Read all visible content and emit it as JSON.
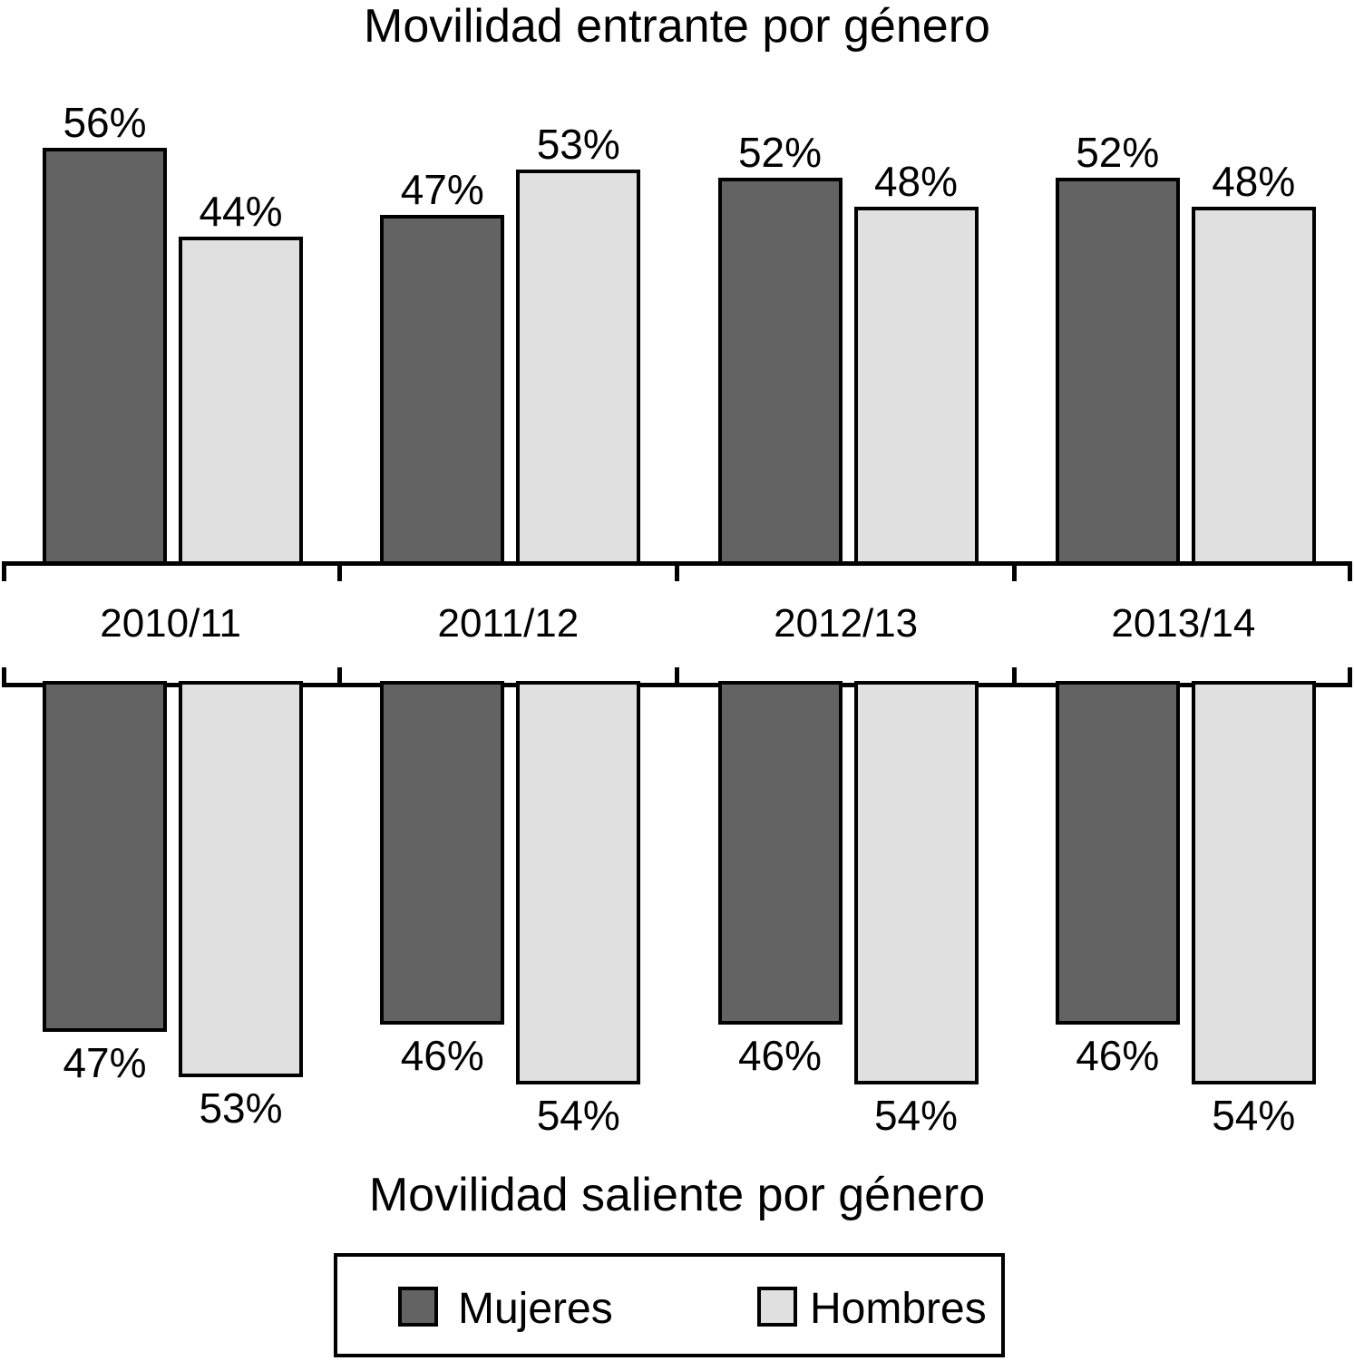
{
  "chart_data": [
    {
      "type": "bar",
      "title": "Movilidad entrante por género",
      "direction": "up",
      "unit": "%",
      "categories": [
        "2010/11",
        "2011/12",
        "2012/13",
        "2013/14"
      ],
      "series": [
        {
          "name": "Mujeres",
          "color": "#636363",
          "values": [
            56,
            47,
            52,
            52
          ]
        },
        {
          "name": "Hombres",
          "color": "#e0e0e0",
          "values": [
            44,
            53,
            48,
            48
          ]
        }
      ],
      "value_label_position": "above-bars",
      "ylim": [
        0,
        56
      ]
    },
    {
      "type": "bar",
      "title": "Movilidad saliente por género",
      "direction": "down",
      "unit": "%",
      "categories": [
        "2010/11",
        "2011/12",
        "2012/13",
        "2013/14"
      ],
      "series": [
        {
          "name": "Mujeres",
          "color": "#636363",
          "values": [
            47,
            46,
            46,
            46
          ]
        },
        {
          "name": "Hombres",
          "color": "#e0e0e0",
          "values": [
            53,
            54,
            54,
            54
          ]
        }
      ],
      "value_label_position": "below-bars",
      "ylim": [
        0,
        54
      ]
    }
  ],
  "legend": {
    "items": [
      {
        "label": "Mujeres",
        "color": "#636363"
      },
      {
        "label": "Hombres",
        "color": "#e0e0e0"
      }
    ]
  },
  "colors": {
    "bar_border": "#000000",
    "axis": "#000000",
    "text": "#000000",
    "background": "#ffffff"
  }
}
